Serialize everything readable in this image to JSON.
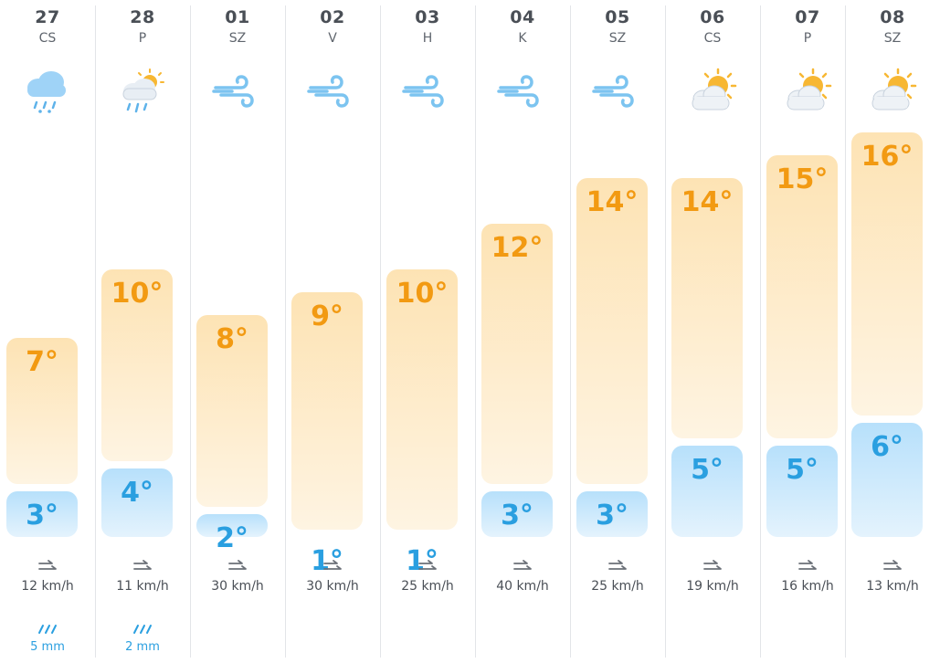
{
  "colors": {
    "high_text": "#f29a12",
    "low_text": "#2a9fe0",
    "high_bar": "#fde3b4",
    "low_bar": "#b7e0fb",
    "divider": "#e3e5e8",
    "text": "#4a4f56"
  },
  "days": [
    {
      "date": "27",
      "day": "CS",
      "icon": "rain-cloud-icon",
      "high": 7,
      "low": 3,
      "high_label": "7°",
      "low_label": "3°",
      "wind": "12 km/h",
      "rain": "5 mm"
    },
    {
      "date": "28",
      "day": "P",
      "icon": "sun-rain-cloud-icon",
      "high": 10,
      "low": 4,
      "high_label": "10°",
      "low_label": "4°",
      "wind": "11 km/h",
      "rain": "2 mm"
    },
    {
      "date": "01",
      "day": "SZ",
      "icon": "wind-icon",
      "high": 8,
      "low": 2,
      "high_label": "8°",
      "low_label": "2°",
      "wind": "30 km/h"
    },
    {
      "date": "02",
      "day": "V",
      "icon": "wind-icon",
      "high": 9,
      "low": 1,
      "high_label": "9°",
      "low_label": "1°",
      "wind": "30 km/h"
    },
    {
      "date": "03",
      "day": "H",
      "icon": "wind-icon",
      "high": 10,
      "low": 1,
      "high_label": "10°",
      "low_label": "1°",
      "wind": "25 km/h"
    },
    {
      "date": "04",
      "day": "K",
      "icon": "wind-icon",
      "high": 12,
      "low": 3,
      "high_label": "12°",
      "low_label": "3°",
      "wind": "40 km/h"
    },
    {
      "date": "05",
      "day": "SZ",
      "icon": "wind-icon",
      "high": 14,
      "low": 3,
      "high_label": "14°",
      "low_label": "3°",
      "wind": "25 km/h"
    },
    {
      "date": "06",
      "day": "CS",
      "icon": "partly-cloudy-icon",
      "high": 14,
      "low": 5,
      "high_label": "14°",
      "low_label": "5°",
      "wind": "19 km/h"
    },
    {
      "date": "07",
      "day": "P",
      "icon": "partly-cloudy-icon",
      "high": 15,
      "low": 5,
      "high_label": "15°",
      "low_label": "5°",
      "wind": "16 km/h"
    },
    {
      "date": "08",
      "day": "SZ",
      "icon": "partly-cloudy-icon",
      "high": 16,
      "low": 6,
      "high_label": "16°",
      "low_label": "6°",
      "wind": "13 km/h"
    }
  ]
}
